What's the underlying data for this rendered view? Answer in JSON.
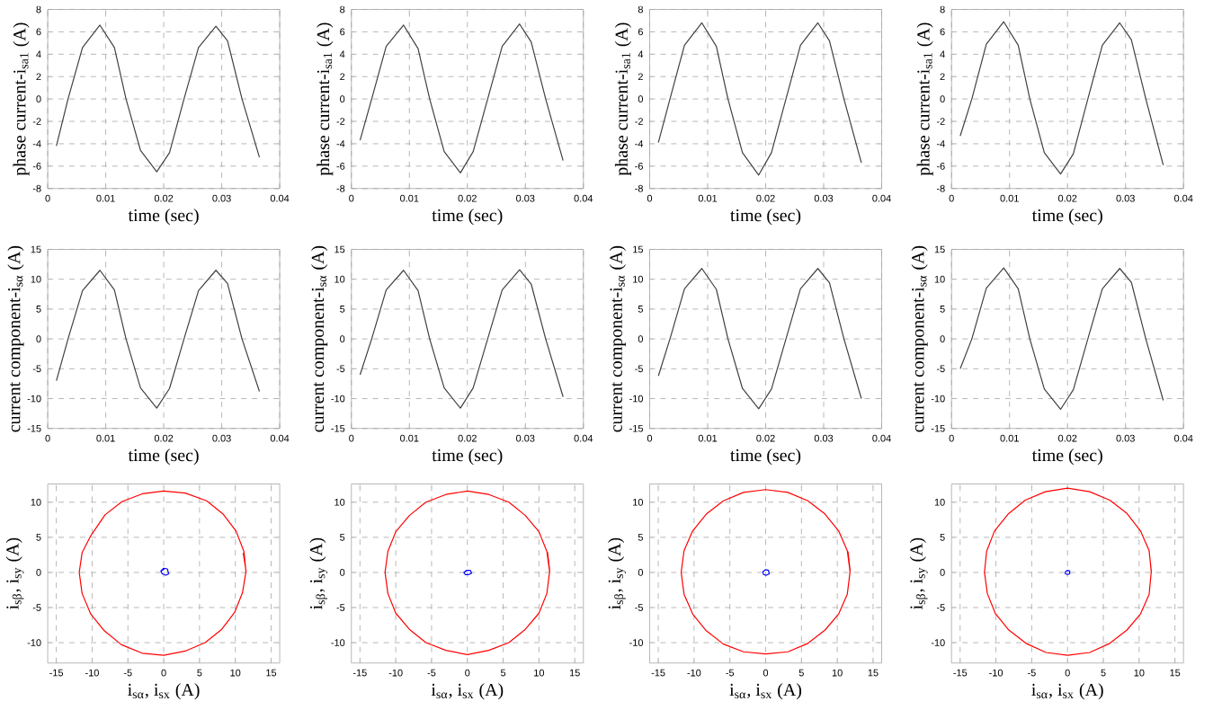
{
  "chart_data": [
    {
      "type": "line",
      "xlabel": "time (sec)",
      "ylabel": "phase current-i$_{sa1}$ (A)",
      "xlim": [
        0,
        0.04
      ],
      "xticks": [
        0,
        0.01,
        0.02,
        0.03,
        0.04
      ],
      "ylim": [
        -8,
        8
      ],
      "yticks": [
        -8,
        -6,
        -4,
        -2,
        0,
        2,
        4,
        6,
        8
      ],
      "grid": true,
      "color": "#404040",
      "x": [
        0.0015,
        0.0035,
        0.006,
        0.009,
        0.0115,
        0.0135,
        0.016,
        0.0188,
        0.021,
        0.0235,
        0.026,
        0.029,
        0.031,
        0.0335,
        0.0365
      ],
      "values": [
        -4.2,
        0,
        4.6,
        6.6,
        4.6,
        0,
        -4.6,
        -6.5,
        -4.8,
        0,
        4.6,
        6.5,
        5.2,
        0,
        -5.2
      ]
    },
    {
      "type": "line",
      "xlabel": "time (sec)",
      "ylabel": "phase current-i$_{sa1}$ (A)",
      "xlim": [
        0,
        0.04
      ],
      "xticks": [
        0,
        0.01,
        0.02,
        0.03,
        0.04
      ],
      "ylim": [
        -8,
        8
      ],
      "yticks": [
        -8,
        -6,
        -4,
        -2,
        0,
        2,
        4,
        6,
        8
      ],
      "grid": true,
      "color": "#404040",
      "x": [
        0.0015,
        0.0035,
        0.006,
        0.009,
        0.0115,
        0.0135,
        0.016,
        0.0188,
        0.021,
        0.0235,
        0.026,
        0.029,
        0.031,
        0.0335,
        0.0365
      ],
      "values": [
        -3.7,
        0,
        4.7,
        6.6,
        4.5,
        0,
        -4.7,
        -6.6,
        -4.7,
        0,
        4.7,
        6.7,
        5.1,
        0,
        -5.5
      ]
    },
    {
      "type": "line",
      "xlabel": "time (sec)",
      "ylabel": "phase current-i$_{sa1}$ (A)",
      "xlim": [
        0,
        0.04
      ],
      "xticks": [
        0,
        0.01,
        0.02,
        0.03,
        0.04
      ],
      "ylim": [
        -8,
        8
      ],
      "yticks": [
        -8,
        -6,
        -4,
        -2,
        0,
        2,
        4,
        6,
        8
      ],
      "grid": true,
      "color": "#404040",
      "x": [
        0.0015,
        0.0035,
        0.006,
        0.009,
        0.0115,
        0.0135,
        0.016,
        0.0188,
        0.021,
        0.0235,
        0.026,
        0.029,
        0.031,
        0.0335,
        0.0365
      ],
      "values": [
        -3.9,
        0,
        4.8,
        6.8,
        4.7,
        0,
        -4.8,
        -6.8,
        -4.8,
        0,
        4.8,
        6.8,
        5.2,
        0,
        -5.7
      ]
    },
    {
      "type": "line",
      "xlabel": "time (sec)",
      "ylabel": "phase current-i$_{sa1}$ (A)",
      "xlim": [
        0,
        0.04
      ],
      "xticks": [
        0,
        0.01,
        0.02,
        0.03,
        0.04
      ],
      "ylim": [
        -8,
        8
      ],
      "yticks": [
        -8,
        -6,
        -4,
        -2,
        0,
        2,
        4,
        6,
        8
      ],
      "grid": true,
      "color": "#404040",
      "x": [
        0.0015,
        0.0035,
        0.006,
        0.009,
        0.0115,
        0.0135,
        0.016,
        0.0188,
        0.021,
        0.0235,
        0.026,
        0.029,
        0.031,
        0.0335,
        0.0365
      ],
      "values": [
        -3.3,
        0,
        4.9,
        6.9,
        4.8,
        0,
        -4.8,
        -6.7,
        -4.9,
        0,
        4.8,
        6.8,
        5.3,
        0,
        -5.9
      ]
    },
    {
      "type": "line",
      "xlabel": "time (sec)",
      "ylabel": "current component-i$_{sα}$ (A)",
      "xlim": [
        0,
        0.04
      ],
      "xticks": [
        0,
        0.01,
        0.02,
        0.03,
        0.04
      ],
      "ylim": [
        -15,
        15
      ],
      "yticks": [
        -15,
        -10,
        -5,
        0,
        5,
        10,
        15
      ],
      "grid": true,
      "color": "#404040",
      "x": [
        0.0015,
        0.0035,
        0.006,
        0.009,
        0.0115,
        0.0135,
        0.016,
        0.0188,
        0.021,
        0.0235,
        0.026,
        0.029,
        0.031,
        0.0335,
        0.0365
      ],
      "values": [
        -7,
        0,
        8.1,
        11.5,
        8.2,
        0,
        -8.2,
        -11.6,
        -8.3,
        0,
        8.1,
        11.5,
        9.3,
        0,
        -8.8
      ]
    },
    {
      "type": "line",
      "xlabel": "time (sec)",
      "ylabel": "current component-i$_{sα}$ (A)",
      "xlim": [
        0,
        0.04
      ],
      "xticks": [
        0,
        0.01,
        0.02,
        0.03,
        0.04
      ],
      "ylim": [
        -15,
        15
      ],
      "yticks": [
        -15,
        -10,
        -5,
        0,
        5,
        10,
        15
      ],
      "grid": true,
      "color": "#404040",
      "x": [
        0.0015,
        0.0035,
        0.006,
        0.009,
        0.0115,
        0.0135,
        0.016,
        0.0188,
        0.021,
        0.0235,
        0.026,
        0.029,
        0.031,
        0.0335,
        0.0365
      ],
      "values": [
        -6,
        0,
        8.2,
        11.5,
        8.1,
        0,
        -8.2,
        -11.6,
        -8.2,
        0,
        8.2,
        11.6,
        9.2,
        0,
        -9.7
      ]
    },
    {
      "type": "line",
      "xlabel": "time (sec)",
      "ylabel": "current component-i$_{sα}$ (A)",
      "xlim": [
        0,
        0.04
      ],
      "xticks": [
        0,
        0.01,
        0.02,
        0.03,
        0.04
      ],
      "ylim": [
        -15,
        15
      ],
      "yticks": [
        -15,
        -10,
        -5,
        0,
        5,
        10,
        15
      ],
      "grid": true,
      "color": "#404040",
      "x": [
        0.0015,
        0.0035,
        0.006,
        0.009,
        0.0115,
        0.0135,
        0.016,
        0.0188,
        0.021,
        0.0235,
        0.026,
        0.029,
        0.031,
        0.0335,
        0.0365
      ],
      "values": [
        -6.2,
        0,
        8.4,
        11.8,
        8.3,
        0,
        -8.3,
        -11.7,
        -8.4,
        0,
        8.4,
        11.8,
        9.4,
        0,
        -10
      ]
    },
    {
      "type": "line",
      "xlabel": "time (sec)",
      "ylabel": "current component-i$_{sα}$ (A)",
      "xlim": [
        0,
        0.04
      ],
      "xticks": [
        0,
        0.01,
        0.02,
        0.03,
        0.04
      ],
      "ylim": [
        -15,
        15
      ],
      "yticks": [
        -15,
        -10,
        -5,
        0,
        5,
        10,
        15
      ],
      "grid": true,
      "color": "#404040",
      "x": [
        0.0015,
        0.0035,
        0.006,
        0.009,
        0.0115,
        0.0135,
        0.016,
        0.0188,
        0.021,
        0.0235,
        0.026,
        0.029,
        0.031,
        0.0335,
        0.0365
      ],
      "values": [
        -5,
        0,
        8.5,
        11.9,
        8.4,
        0,
        -8.4,
        -11.8,
        -8.5,
        0,
        8.4,
        11.8,
        9.5,
        0,
        -10.3
      ]
    },
    {
      "type": "line",
      "xlabel": "i$_{sα}$, i$_{sx}$ (A)",
      "ylabel": "i$_{sβ}$, i$_{sy}$ (A)",
      "xlim": [
        -16.2,
        16.2
      ],
      "xticks": [
        -15,
        -10,
        -5,
        0,
        5,
        10,
        15
      ],
      "ylim": [
        -12.9,
        12.6
      ],
      "yticks": [
        -10,
        -5,
        0,
        5,
        10
      ],
      "grid": true,
      "series": [
        {
          "color": "#ff0000",
          "x": [
            11.5,
            11.2,
            10.1,
            8.3,
            6.0,
            3.0,
            0,
            -3.0,
            -5.8,
            -8.2,
            -10.2,
            -11.4,
            -11.8,
            -11.4,
            -10.2,
            -8.3,
            -5.9,
            -3.0,
            0,
            3.0,
            5.8,
            8.1,
            9.9,
            11.0,
            11.5,
            11.1
          ],
          "values": [
            0,
            3.0,
            5.9,
            8.3,
            10.2,
            11.3,
            11.6,
            11.2,
            10.1,
            8.2,
            5.2,
            2.8,
            0,
            -3.0,
            -5.9,
            -8.3,
            -10.3,
            -11.5,
            -11.8,
            -11.2,
            -10.0,
            -8.1,
            -5.7,
            -2.9,
            0.2,
            2.8
          ]
        },
        {
          "color": "#0000ff",
          "x": [
            -0.4,
            0,
            0.5,
            0.7,
            0.3,
            -0.2,
            -0.4,
            0.1
          ],
          "values": [
            0.2,
            0.6,
            0.5,
            -0.2,
            -0.4,
            -0.2,
            0.2,
            0.5
          ]
        }
      ]
    },
    {
      "type": "line",
      "xlabel": "i$_{sα}$, i$_{sx}$ (A)",
      "ylabel": "i$_{sβ}$, i$_{sy}$ (A)",
      "xlim": [
        -16.2,
        16.2
      ],
      "xticks": [
        -15,
        -10,
        -5,
        0,
        5,
        10,
        15
      ],
      "ylim": [
        -12.9,
        12.6
      ],
      "yticks": [
        -10,
        -5,
        0,
        5,
        10
      ],
      "grid": true,
      "series": [
        {
          "color": "#ff0000",
          "x": [
            11.5,
            11.1,
            10.0,
            8.1,
            5.8,
            3.0,
            0,
            -3.0,
            -5.8,
            -8.1,
            -10.0,
            -11.1,
            -11.5,
            -11.1,
            -10.0,
            -8.1,
            -5.8,
            -3.0,
            0,
            3.0,
            5.8,
            8.1,
            10.0,
            11.1,
            11.5,
            11.2
          ],
          "values": [
            0,
            3.0,
            5.8,
            8.1,
            10.0,
            11.1,
            11.6,
            11.1,
            10.0,
            8.1,
            5.8,
            3.0,
            0,
            -3.0,
            -5.8,
            -8.1,
            -10.0,
            -11.1,
            -11.7,
            -11.1,
            -10.0,
            -8.1,
            -5.8,
            -3.0,
            0.2,
            2.9
          ]
        },
        {
          "color": "#0000ff",
          "x": [
            -0.5,
            -0.1,
            0.4,
            0.6,
            0.2,
            -0.3,
            -0.5,
            0
          ],
          "values": [
            0,
            0.3,
            0.3,
            -0.1,
            -0.3,
            -0.3,
            0,
            0.3
          ]
        }
      ]
    },
    {
      "type": "line",
      "xlabel": "i$_{sα}$, i$_{sx}$ (A)",
      "ylabel": "i$_{sβ}$, i$_{sy}$ (A)",
      "xlim": [
        -16.2,
        16.2
      ],
      "xticks": [
        -15,
        -10,
        -5,
        0,
        5,
        10,
        15
      ],
      "ylim": [
        -12.9,
        12.6
      ],
      "yticks": [
        -10,
        -5,
        0,
        5,
        10
      ],
      "grid": true,
      "series": [
        {
          "color": "#ff0000",
          "x": [
            11.8,
            11.4,
            10.2,
            8.3,
            5.9,
            3.1,
            0,
            -3.1,
            -5.9,
            -8.3,
            -10.2,
            -11.4,
            -11.8,
            -11.4,
            -10.2,
            -8.3,
            -5.9,
            -3.1,
            0,
            3.1,
            5.9,
            8.3,
            10.2,
            11.4,
            11.8,
            11.5
          ],
          "values": [
            0,
            3.1,
            5.9,
            8.3,
            10.2,
            11.4,
            11.8,
            11.4,
            10.2,
            8.3,
            5.9,
            3.1,
            0,
            -3.1,
            -5.9,
            -8.3,
            -10.2,
            -11.3,
            -11.6,
            -11.3,
            -10.1,
            -8.2,
            -5.9,
            -3.1,
            0.2,
            3.0
          ]
        },
        {
          "color": "#0000ff",
          "x": [
            -0.4,
            0,
            0.4,
            0.5,
            0.1,
            -0.3,
            -0.4,
            0
          ],
          "values": [
            0.1,
            0.4,
            0.3,
            -0.2,
            -0.4,
            -0.3,
            0.1,
            0.4
          ]
        }
      ]
    },
    {
      "type": "line",
      "xlabel": "i$_{sα}$, i$_{sx}$ (A)",
      "ylabel": "i$_{sβ}$, i$_{sy}$ (A)",
      "xlim": [
        -16.2,
        16.2
      ],
      "xticks": [
        -15,
        -10,
        -5,
        0,
        5,
        10,
        15
      ],
      "ylim": [
        -12.9,
        12.6
      ],
      "yticks": [
        -10,
        -5,
        0,
        5,
        10
      ],
      "grid": true,
      "series": [
        {
          "color": "#ff0000",
          "x": [
            11.7,
            11.4,
            10.2,
            8.3,
            5.9,
            3.1,
            0,
            -3.1,
            -5.9,
            -8.3,
            -10.2,
            -11.3,
            -11.6,
            -11.2,
            -10.1,
            -8.2,
            -5.8,
            -3.0,
            0,
            3.1,
            5.9,
            8.3,
            10.2,
            11.4,
            11.7,
            11.4
          ],
          "values": [
            0,
            3.1,
            5.9,
            8.4,
            10.3,
            11.5,
            12.0,
            11.5,
            10.3,
            8.3,
            5.9,
            3.0,
            0,
            -3.0,
            -5.8,
            -8.2,
            -10.1,
            -11.4,
            -11.8,
            -11.4,
            -10.1,
            -8.2,
            -5.9,
            -3.1,
            0.2,
            3.0
          ]
        },
        {
          "color": "#0000ff",
          "x": [
            -0.3,
            0,
            0.3,
            0.3,
            0,
            -0.3,
            -0.3,
            0
          ],
          "values": [
            0.1,
            0.3,
            0.2,
            -0.2,
            -0.3,
            -0.2,
            0.1,
            0.3
          ]
        }
      ]
    }
  ]
}
